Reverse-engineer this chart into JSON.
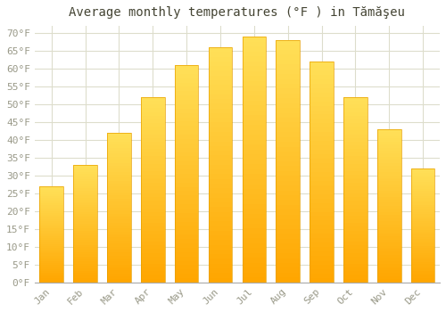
{
  "title": "Average monthly temperatures (°F ) in Tămăşeu",
  "months": [
    "Jan",
    "Feb",
    "Mar",
    "Apr",
    "May",
    "Jun",
    "Jul",
    "Aug",
    "Sep",
    "Oct",
    "Nov",
    "Dec"
  ],
  "values": [
    27,
    33,
    42,
    52,
    61,
    66,
    69,
    68,
    62,
    52,
    43,
    32
  ],
  "bar_color_top": "#FFD966",
  "bar_color_bottom": "#FFA500",
  "bar_edge_color": "#E8A000",
  "ylim": [
    0,
    72
  ],
  "yticks": [
    0,
    5,
    10,
    15,
    20,
    25,
    30,
    35,
    40,
    45,
    50,
    55,
    60,
    65,
    70
  ],
  "background_color": "#ffffff",
  "grid_color": "#ddddcc",
  "title_fontsize": 10,
  "tick_fontsize": 8,
  "tick_color": "#999988",
  "title_color": "#444433"
}
